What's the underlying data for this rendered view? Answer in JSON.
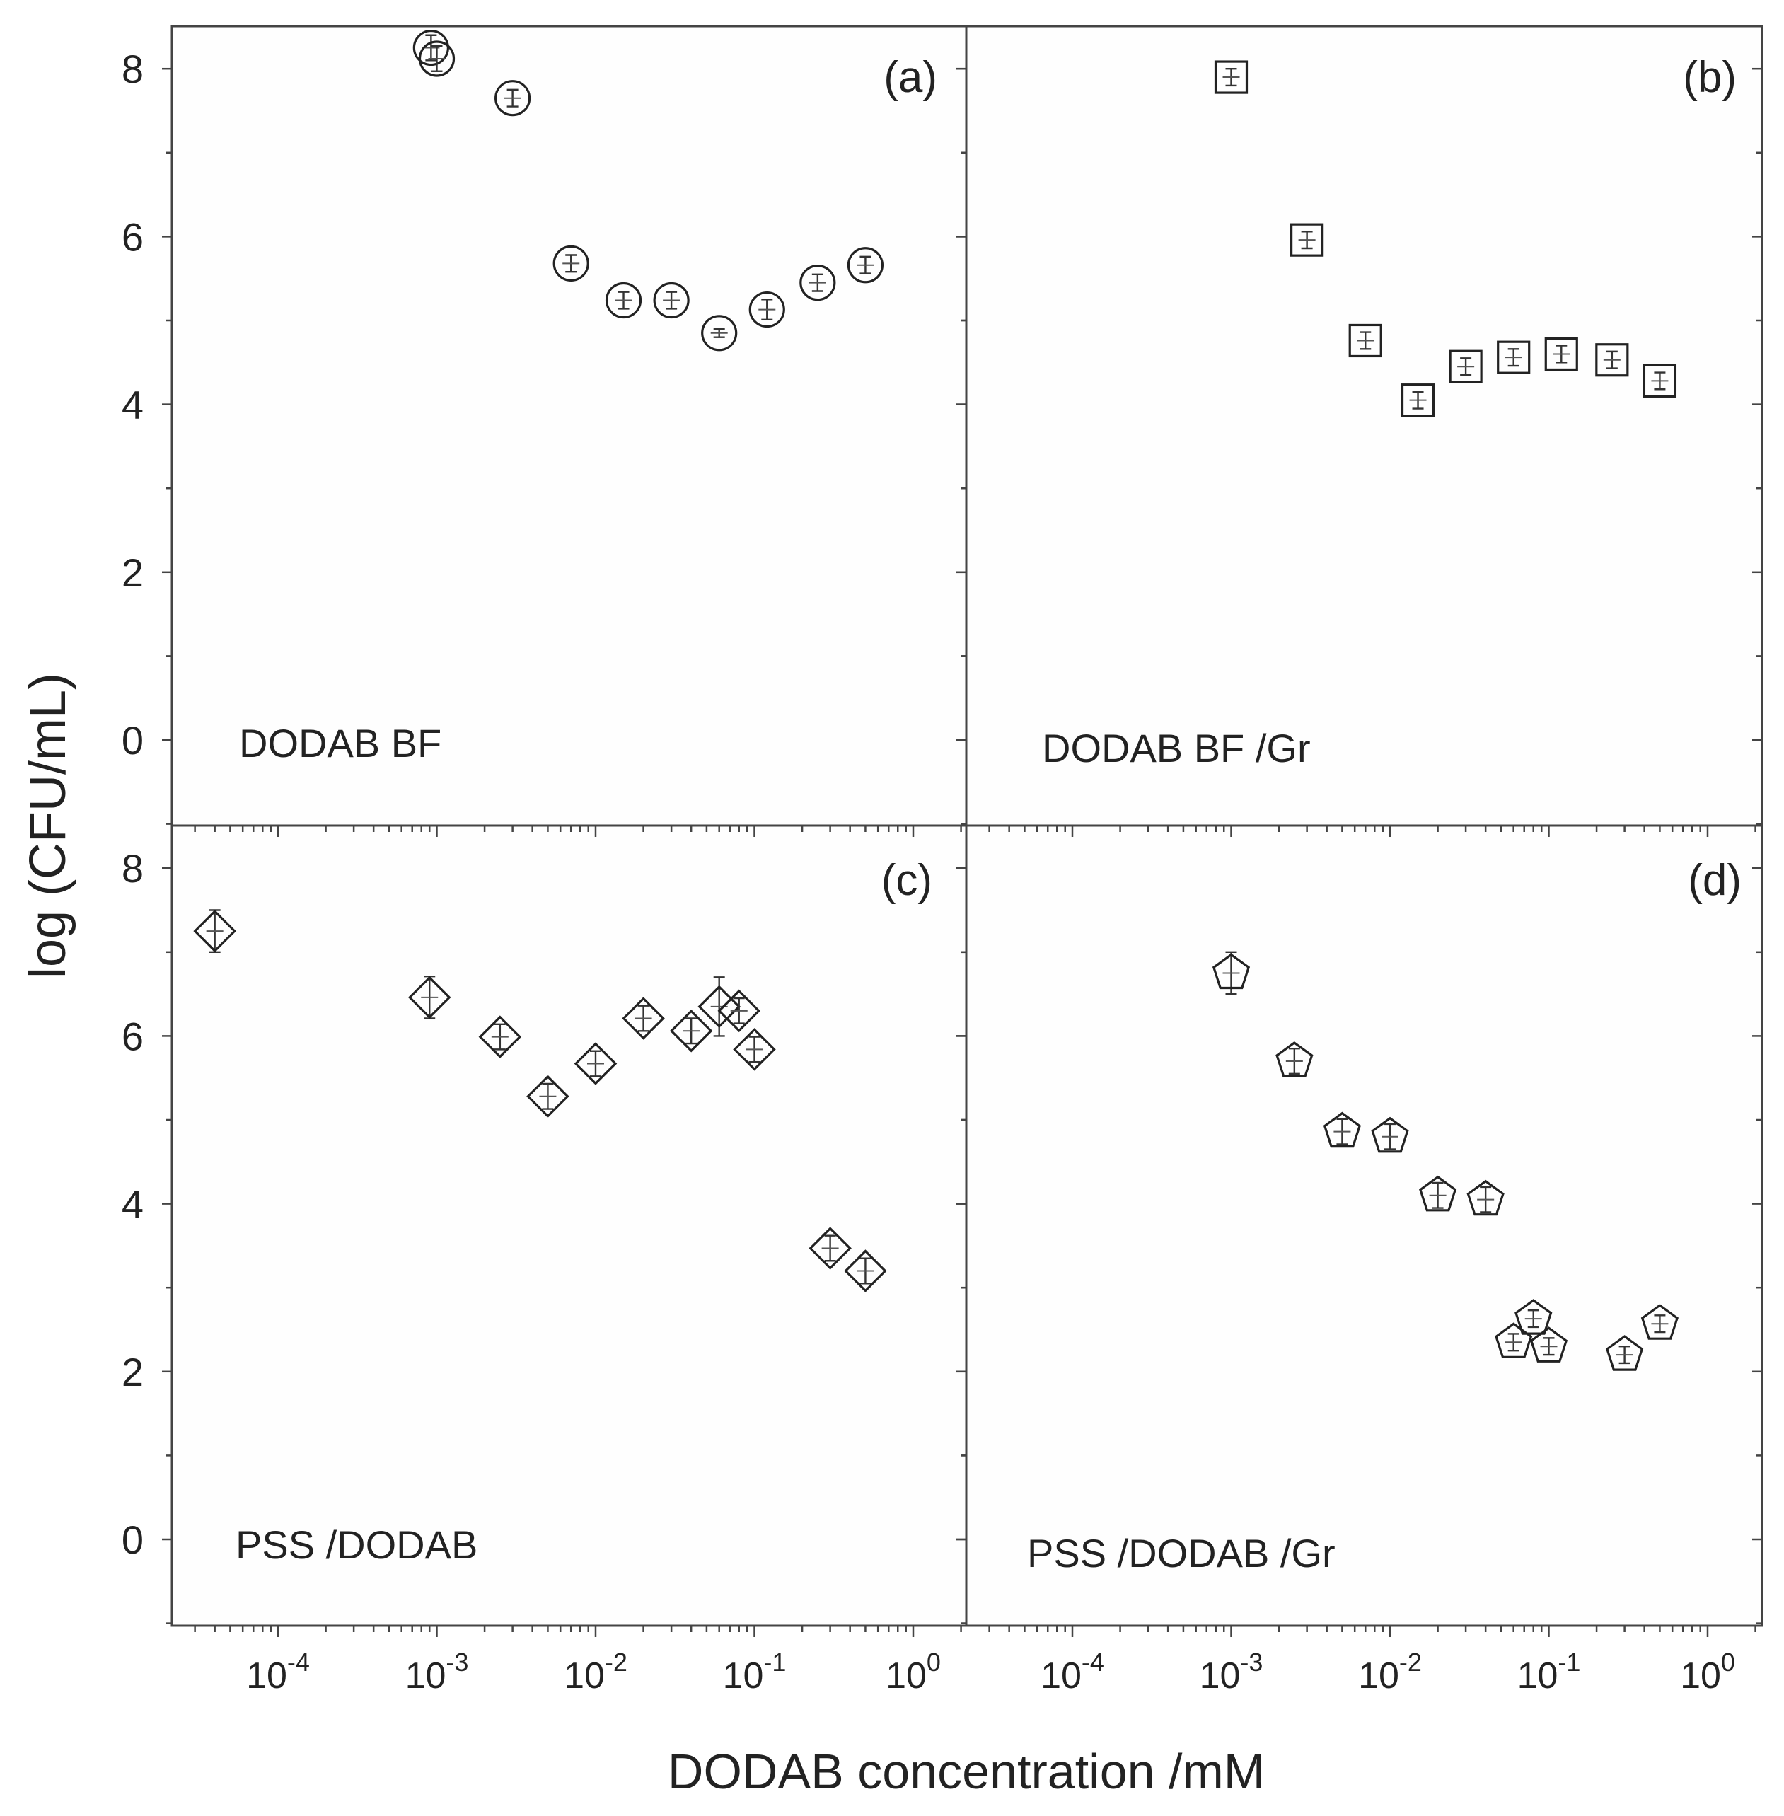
{
  "chart_data": {
    "type": "scatter",
    "layout": "2x2 grid, shared axes",
    "xlabel": "DODAB concentration /mM",
    "ylabel": "log (CFU/mL)",
    "xscale": "log",
    "xlim": [
      2e-05,
      2.5
    ],
    "ylim": [
      -1,
      8.5
    ],
    "yticks": [
      "0",
      "2",
      "4",
      "6",
      "8"
    ],
    "xtick_labels": [
      {
        "base": "10",
        "exp": "-4",
        "value": 0.0001
      },
      {
        "base": "10",
        "exp": "-3",
        "value": 0.001
      },
      {
        "base": "10",
        "exp": "-2",
        "value": 0.01
      },
      {
        "base": "10",
        "exp": "-1",
        "value": 0.1
      },
      {
        "base": "10",
        "exp": "0",
        "value": 1
      }
    ],
    "panels": [
      {
        "id": "a",
        "tag": "(a)",
        "label": "DODAB BF",
        "marker": "circle",
        "x": [
          0.00092,
          0.001,
          0.003,
          0.007,
          0.015,
          0.03,
          0.06,
          0.12,
          0.25,
          0.5
        ],
        "y": [
          8.25,
          8.12,
          7.65,
          5.68,
          5.24,
          5.24,
          4.85,
          5.13,
          5.45,
          5.66
        ],
        "err": [
          0.15,
          0.15,
          0.1,
          0.1,
          0.1,
          0.1,
          0.05,
          0.12,
          0.1,
          0.1
        ]
      },
      {
        "id": "b",
        "tag": "(b)",
        "label": "DODAB BF /Gr",
        "marker": "square",
        "x": [
          0.001,
          0.003,
          0.007,
          0.015,
          0.03,
          0.06,
          0.12,
          0.25,
          0.5
        ],
        "y": [
          7.9,
          5.96,
          4.76,
          4.05,
          4.45,
          4.56,
          4.6,
          4.53,
          4.28
        ],
        "err": [
          0.1,
          0.1,
          0.1,
          0.1,
          0.1,
          0.1,
          0.1,
          0.1,
          0.1
        ]
      },
      {
        "id": "c",
        "tag": "(c)",
        "label": "PSS /DODAB",
        "marker": "diamond",
        "x": [
          4e-05,
          0.0009,
          0.0025,
          0.005,
          0.01,
          0.02,
          0.04,
          0.06,
          0.08,
          0.1,
          0.3,
          0.5
        ],
        "y": [
          7.25,
          6.46,
          5.99,
          5.28,
          5.67,
          6.21,
          6.06,
          6.35,
          6.3,
          5.84,
          3.47,
          3.2
        ],
        "err": [
          0.25,
          0.25,
          0.15,
          0.15,
          0.15,
          0.15,
          0.15,
          0.35,
          0.15,
          0.15,
          0.15,
          0.15
        ]
      },
      {
        "id": "d",
        "tag": "(d)",
        "label": "PSS /DODAB /Gr",
        "marker": "pentagon",
        "x": [
          0.001,
          0.0025,
          0.005,
          0.01,
          0.02,
          0.04,
          0.06,
          0.08,
          0.1,
          0.3,
          0.5
        ],
        "y": [
          6.75,
          5.7,
          4.86,
          4.8,
          4.1,
          4.05,
          2.35,
          2.63,
          2.3,
          2.2,
          2.57
        ],
        "err": [
          0.25,
          0.15,
          0.15,
          0.15,
          0.15,
          0.15,
          0.1,
          0.1,
          0.1,
          0.1,
          0.1
        ]
      }
    ]
  }
}
